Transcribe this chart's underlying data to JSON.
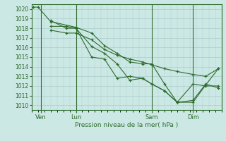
{
  "background_color": "#cce8e4",
  "grid_color": "#aacccc",
  "line_color": "#2d6b2d",
  "marker_color": "#2d6b2d",
  "xlabel_text": "Pression niveau de la mer( hPa )",
  "ylim": [
    1009.5,
    1020.5
  ],
  "yticks": [
    1010,
    1011,
    1012,
    1013,
    1014,
    1015,
    1016,
    1017,
    1018,
    1019,
    1020
  ],
  "xlim": [
    0,
    30
  ],
  "xtick_labels": [
    "Ven",
    "Lun",
    "Sam",
    "Dim"
  ],
  "xtick_positions": [
    1.5,
    7,
    19,
    25.5
  ],
  "vline_positions": [
    1.5,
    7,
    19,
    25.5
  ],
  "series": [
    [
      0.3,
      1020.2,
      1.0,
      1020.2,
      3.0,
      1018.7,
      7.0,
      1018.1,
      9.5,
      1017.5,
      11.5,
      1016.2,
      13.5,
      1015.4,
      15.5,
      1014.5,
      17.5,
      1014.3,
      19.0,
      1014.3,
      21.0,
      1012.2,
      23.0,
      1010.3,
      25.5,
      1010.3,
      27.5,
      1012.1,
      29.5,
      1013.8
    ],
    [
      3.0,
      1018.8,
      5.5,
      1018.0,
      7.0,
      1018.0,
      9.5,
      1016.1,
      11.5,
      1015.4,
      13.5,
      1014.3,
      15.5,
      1012.6,
      17.5,
      1012.8,
      19.0,
      1012.2,
      21.0,
      1011.5,
      23.0,
      1010.3,
      25.5,
      1010.5,
      27.5,
      1012.2,
      29.5,
      1011.8
    ],
    [
      3.0,
      1017.8,
      5.5,
      1017.5,
      7.0,
      1017.5,
      9.5,
      1016.8,
      11.5,
      1015.8,
      13.5,
      1015.2,
      15.5,
      1014.8,
      17.5,
      1014.5,
      19.0,
      1014.2,
      21.0,
      1013.8,
      23.0,
      1013.5,
      25.5,
      1013.2,
      27.5,
      1013.0,
      29.5,
      1013.8
    ],
    [
      3.0,
      1018.2,
      5.5,
      1018.2,
      7.0,
      1018.0,
      9.5,
      1015.0,
      11.5,
      1014.8,
      13.5,
      1012.8,
      15.5,
      1013.0,
      17.5,
      1012.8,
      19.0,
      1012.2,
      21.0,
      1011.5,
      23.0,
      1010.3,
      25.5,
      1012.2,
      27.5,
      1012.0,
      29.5,
      1012.0
    ]
  ]
}
